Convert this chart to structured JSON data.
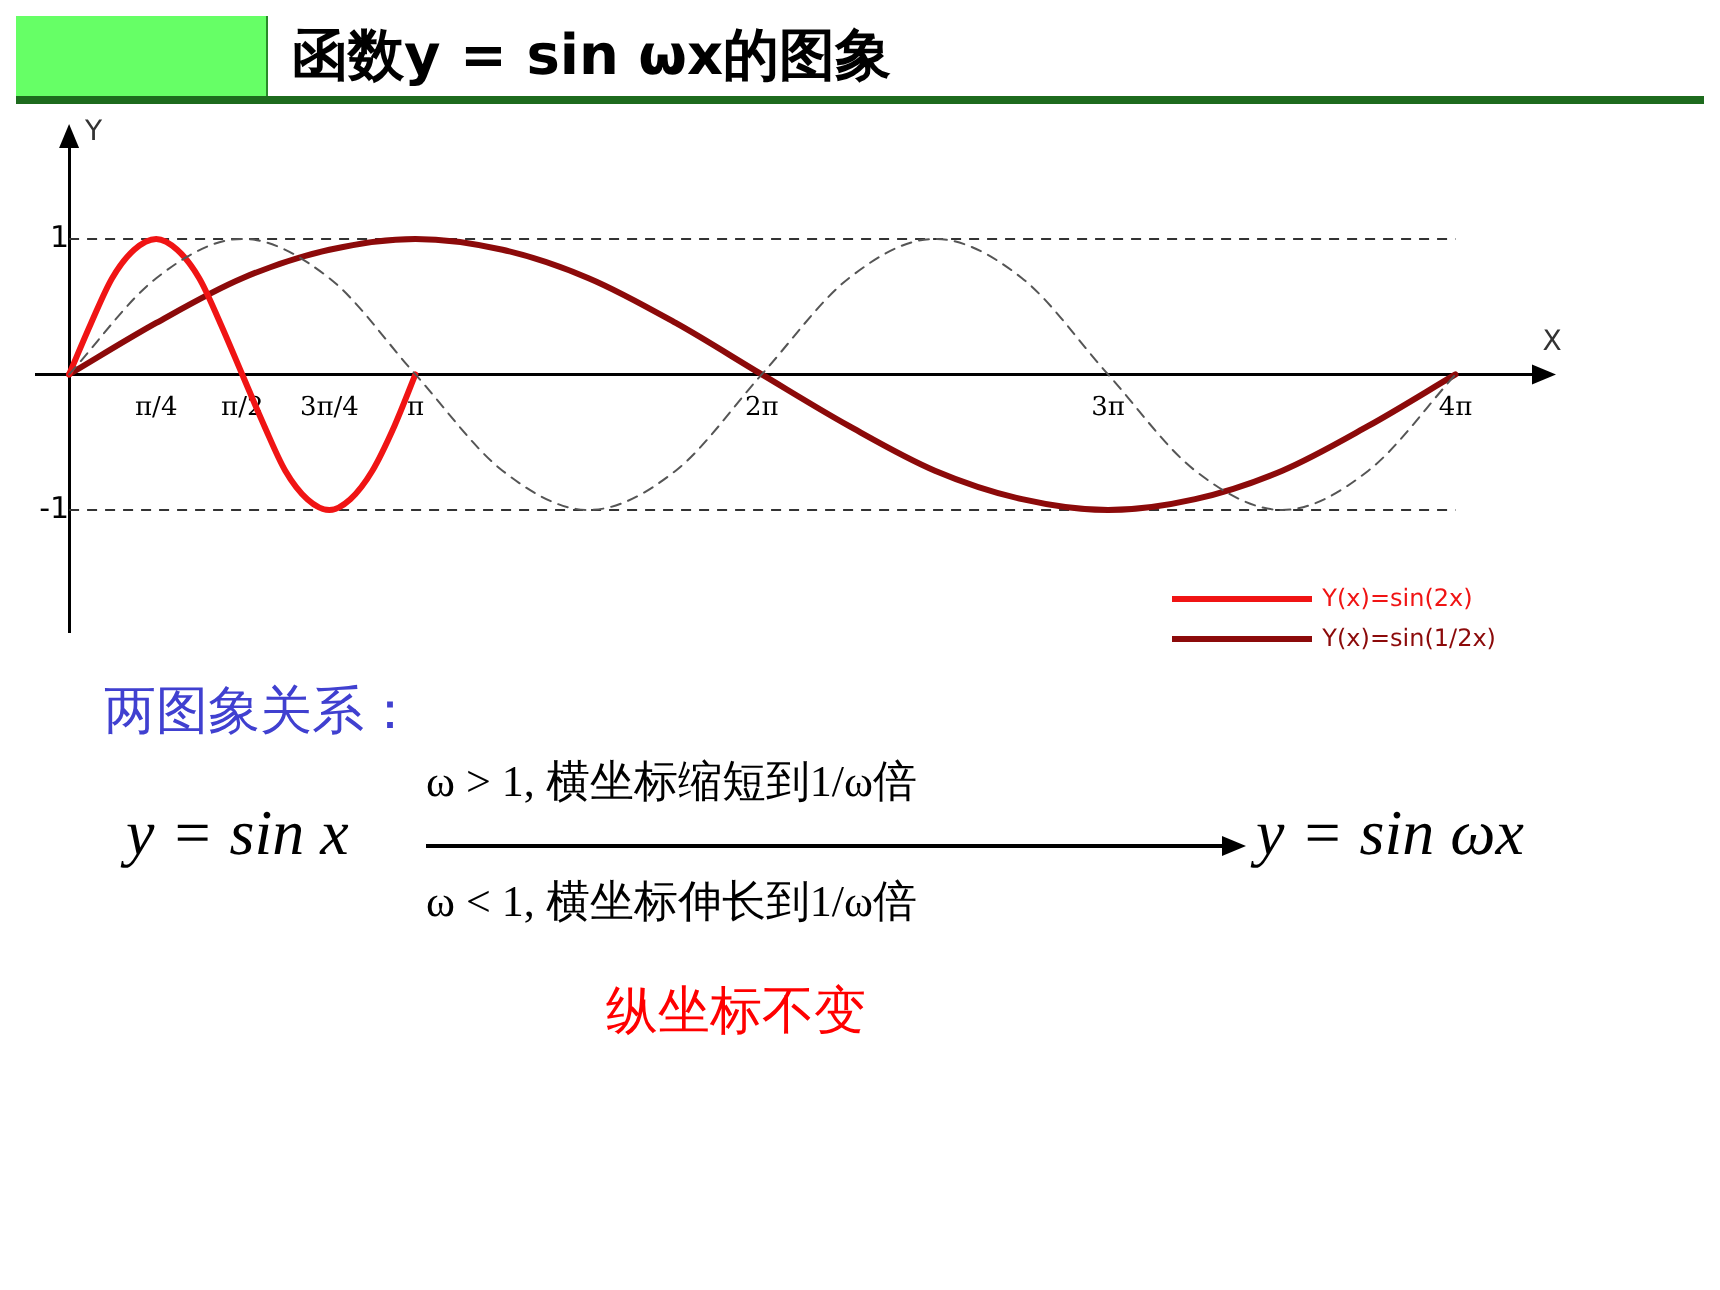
{
  "chart_data": {
    "type": "line",
    "title": "函数y = sin ωx的图象",
    "xlabel": "X",
    "ylabel": "Y",
    "xlim": [
      -0.3,
      13.3
    ],
    "ylim": [
      -1.9,
      1.7
    ],
    "xticks": [
      {
        "value": 0.79,
        "label": "π/4"
      },
      {
        "value": 1.57,
        "label": "π/2"
      },
      {
        "value": 2.36,
        "label": "3π/4"
      },
      {
        "value": 3.14,
        "label": "π"
      },
      {
        "value": 6.28,
        "label": "2π"
      },
      {
        "value": 9.42,
        "label": "3π"
      },
      {
        "value": 12.57,
        "label": "4π"
      }
    ],
    "yticks": [
      -1,
      1
    ],
    "grid": false,
    "legend": "bottom right",
    "marker": "none",
    "ref_lines": [
      {
        "axis": "y",
        "value": 1,
        "color": "#333333",
        "line_style": "dashed"
      },
      {
        "axis": "y",
        "value": -1,
        "color": "#333333",
        "line_style": "dashed"
      }
    ],
    "series": [
      {
        "color": "#555555",
        "line_style": "dashed",
        "x": [
          0,
          0.79,
          1.57,
          2.36,
          3.14,
          3.93,
          4.71,
          5.5,
          6.28,
          7.07,
          7.85,
          8.64,
          9.42,
          10.21,
          11,
          11.78,
          12.57
        ],
        "values": [
          0,
          0.71,
          1,
          0.71,
          0,
          -0.71,
          -1,
          -0.71,
          0,
          0.71,
          1,
          0.71,
          0,
          -0.71,
          -1,
          -0.71,
          0
        ]
      },
      {
        "name": "Y(x)=sin(2x)",
        "color": "#f01414",
        "line_style": "solid",
        "x": [
          0,
          0.2,
          0.39,
          0.59,
          0.79,
          0.98,
          1.18,
          1.37,
          1.57,
          1.77,
          1.96,
          2.16,
          2.36,
          2.55,
          2.75,
          2.95,
          3.14
        ],
        "values": [
          0,
          0.38,
          0.71,
          0.92,
          1,
          0.92,
          0.71,
          0.38,
          0,
          -0.38,
          -0.71,
          -0.92,
          -1,
          -0.92,
          -0.71,
          -0.38,
          0
        ]
      },
      {
        "name": "Y(x)=sin(1/2x)",
        "color": "#8c0a0a",
        "line_style": "solid",
        "x": [
          0,
          0.79,
          1.57,
          2.36,
          3.14,
          3.93,
          4.71,
          5.5,
          6.28,
          7.07,
          7.85,
          8.64,
          9.42,
          10.21,
          11,
          11.78,
          12.57
        ],
        "values": [
          0,
          0.38,
          0.71,
          0.92,
          1,
          0.92,
          0.71,
          0.38,
          0,
          -0.38,
          -0.71,
          -0.92,
          -1,
          -0.92,
          -0.71,
          -0.38,
          0
        ]
      }
    ],
    "annotations": [
      "两图象关系：",
      "y = sin x",
      "ω > 1, 横坐标缩短到1/ω倍",
      "ω < 1, 横坐标伸长到1/ω倍",
      "y = sin ωx",
      "纵坐标不变"
    ]
  }
}
